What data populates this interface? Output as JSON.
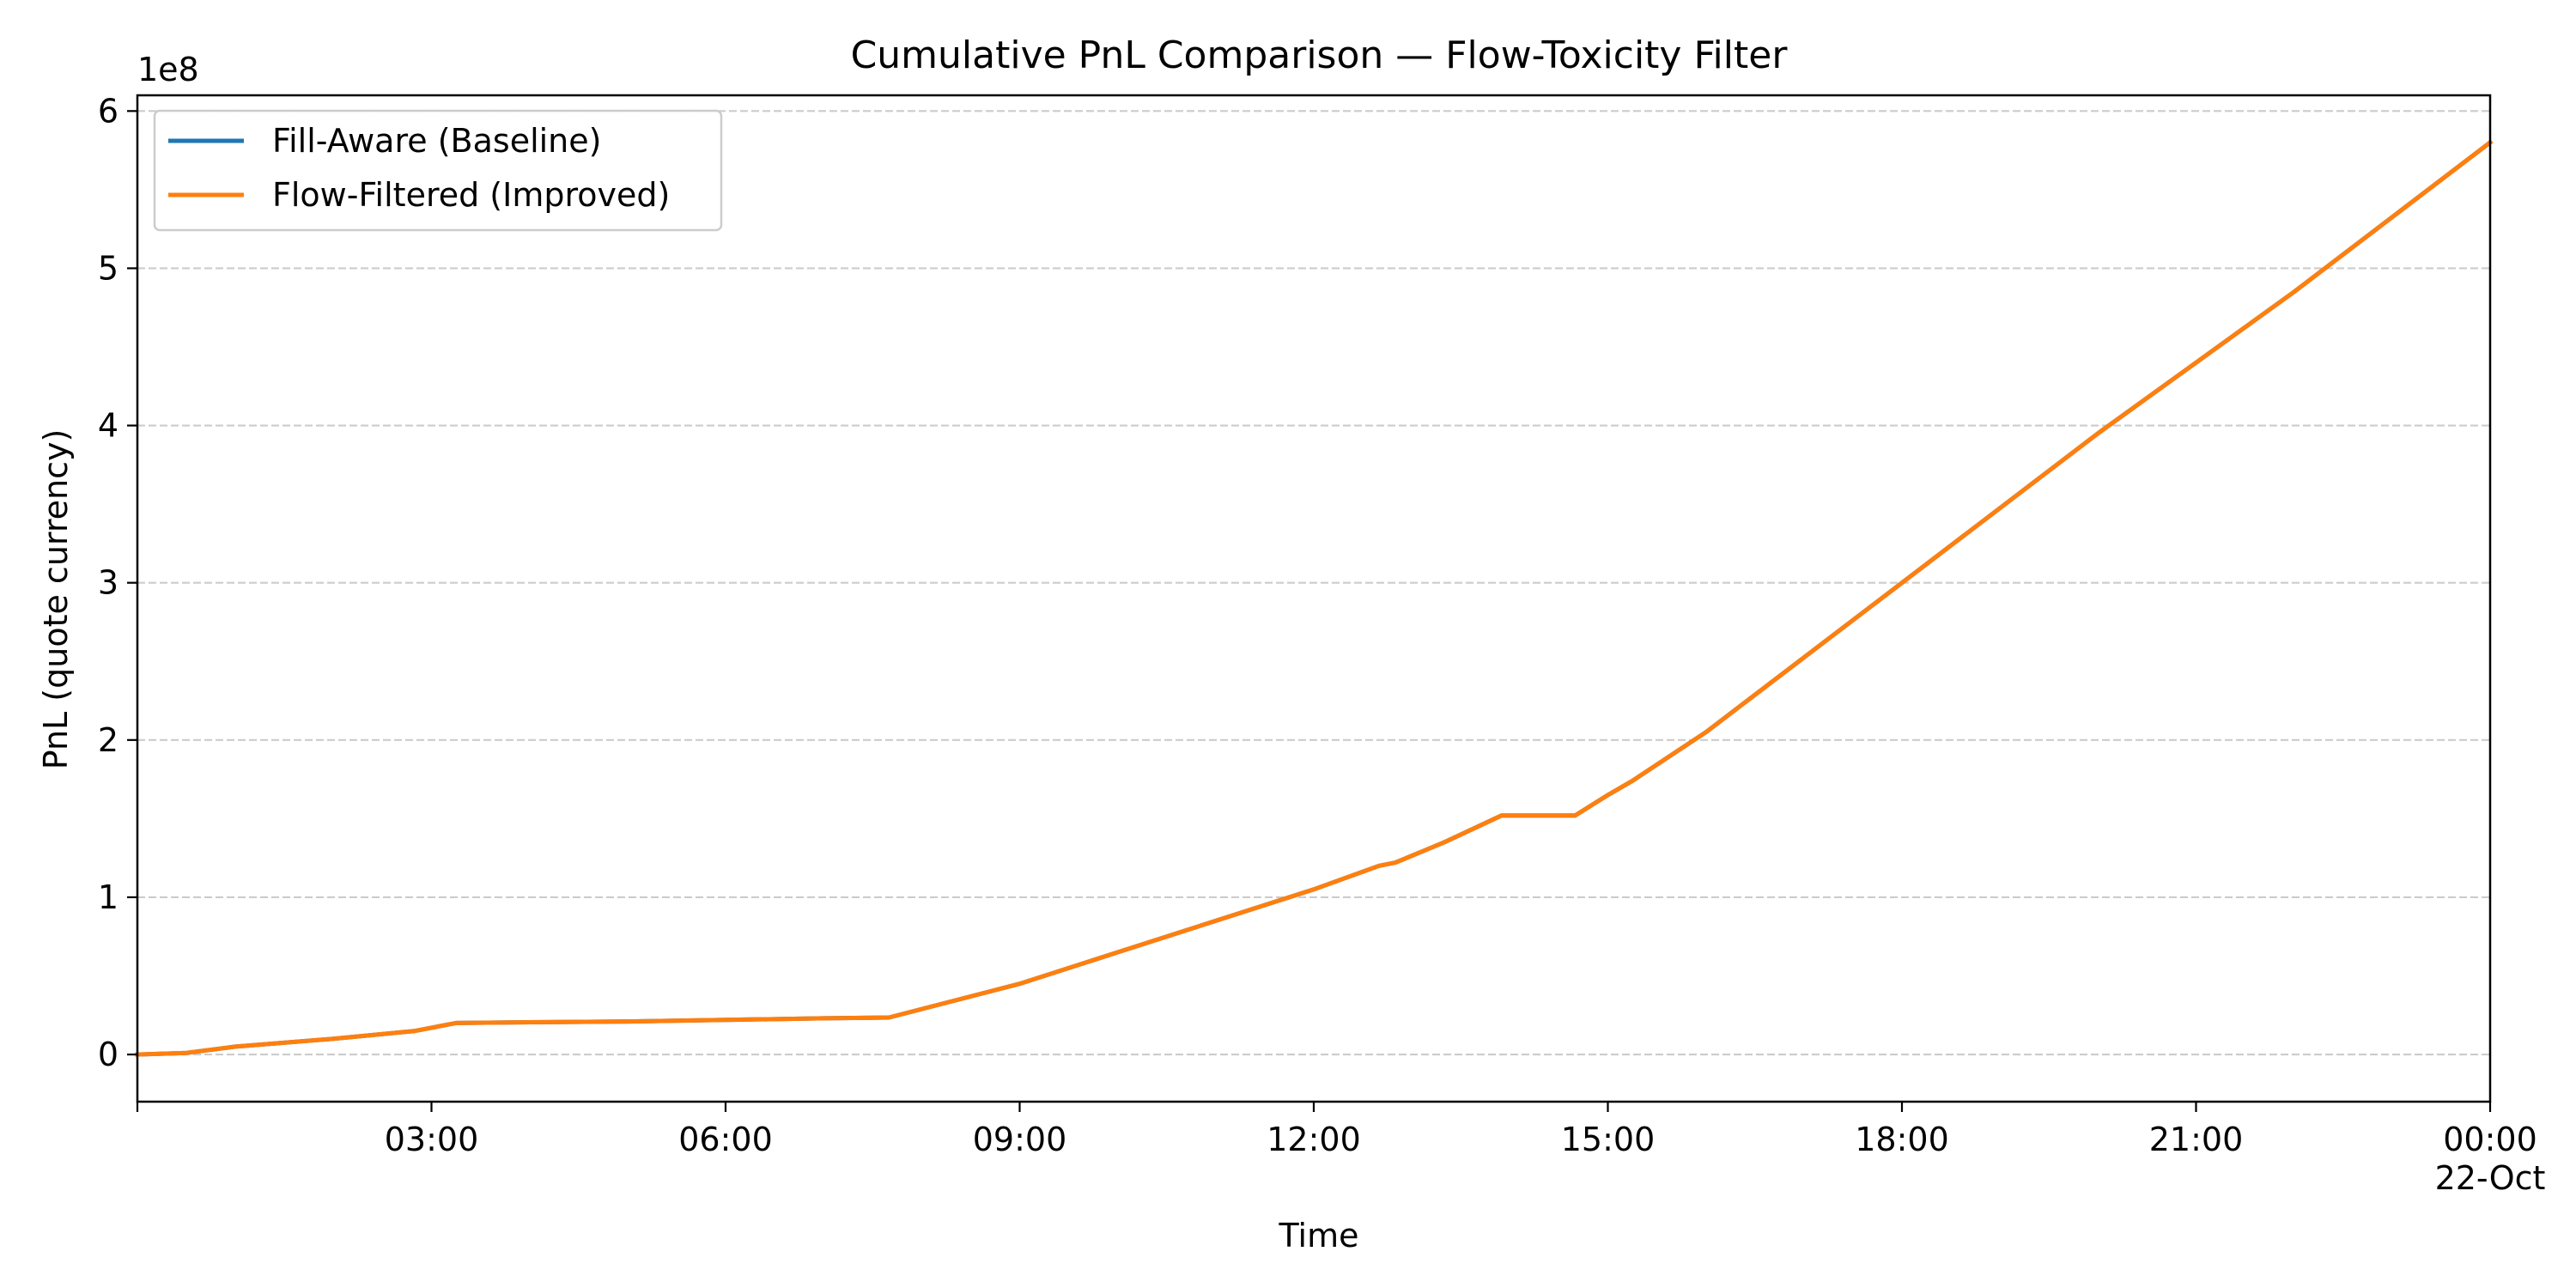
{
  "chart_data": {
    "type": "line",
    "title": "Cumulative PnL Comparison — Flow-Toxicity Filter",
    "xlabel": "Time",
    "ylabel": "PnL (quote currency)",
    "y_offset_text": "1e8",
    "y_multiplier": 100000000,
    "xlim_hours": [
      0,
      24
    ],
    "ylim": [
      -0.3,
      6.1
    ],
    "x_tick_labels": [
      {
        "hour": 3,
        "label": "03:00"
      },
      {
        "hour": 6,
        "label": "06:00"
      },
      {
        "hour": 9,
        "label": "09:00"
      },
      {
        "hour": 12,
        "label": "12:00"
      },
      {
        "hour": 15,
        "label": "15:00"
      },
      {
        "hour": 18,
        "label": "18:00"
      },
      {
        "hour": 21,
        "label": "21:00"
      },
      {
        "hour": 24,
        "label": "00:00",
        "sublabel": "22-Oct"
      }
    ],
    "y_ticks": [
      0,
      1,
      2,
      3,
      4,
      5,
      6
    ],
    "y_tick_labels": [
      "0",
      "1",
      "2",
      "3",
      "4",
      "5",
      "6"
    ],
    "grid": {
      "y": true,
      "x": false,
      "style": "dashed"
    },
    "legend_position": "top-left",
    "series": [
      {
        "name": "Fill-Aware (Baseline)",
        "color": "#1f77b4",
        "x": [
          "00:00",
          "00:30",
          "01:00",
          "02:00",
          "02:50",
          "03:15",
          "04:00",
          "05:00",
          "06:00",
          "07:00",
          "07:40",
          "09:00",
          "10:00",
          "11:00",
          "12:00",
          "12:40",
          "12:50",
          "13:20",
          "13:55",
          "14:40",
          "15:00",
          "15:15",
          "16:00",
          "18:00",
          "20:00",
          "22:00",
          "24:00"
        ],
        "values": [
          0.0,
          0.01,
          0.05,
          0.1,
          0.15,
          0.2,
          0.205,
          0.21,
          0.22,
          0.23,
          0.235,
          0.45,
          0.65,
          0.85,
          1.05,
          1.2,
          1.22,
          1.35,
          1.52,
          1.52,
          1.65,
          1.74,
          2.05,
          3.0,
          3.95,
          4.85,
          5.8
        ]
      },
      {
        "name": "Flow-Filtered (Improved)",
        "color": "#ff7f0e",
        "x": [
          "00:00",
          "00:30",
          "01:00",
          "02:00",
          "02:50",
          "03:15",
          "04:00",
          "05:00",
          "06:00",
          "07:00",
          "07:40",
          "09:00",
          "10:00",
          "11:00",
          "12:00",
          "12:40",
          "12:50",
          "13:20",
          "13:55",
          "14:40",
          "15:00",
          "15:15",
          "16:00",
          "18:00",
          "20:00",
          "22:00",
          "24:00"
        ],
        "values": [
          0.0,
          0.01,
          0.05,
          0.1,
          0.15,
          0.2,
          0.205,
          0.21,
          0.22,
          0.23,
          0.235,
          0.45,
          0.65,
          0.85,
          1.05,
          1.2,
          1.22,
          1.35,
          1.52,
          1.52,
          1.65,
          1.74,
          2.05,
          3.0,
          3.95,
          4.85,
          5.8
        ]
      }
    ]
  },
  "colors": {
    "axis": "#000000",
    "grid": "#cccccc",
    "legend_border": "#cccccc"
  }
}
